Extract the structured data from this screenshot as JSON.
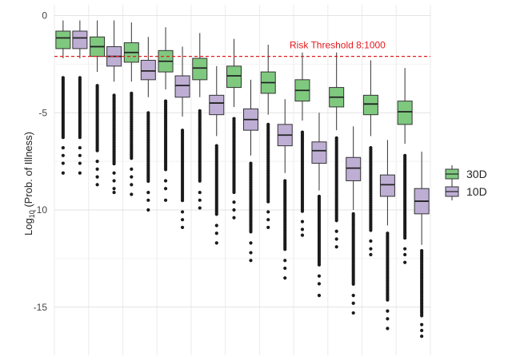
{
  "chart_data": {
    "type": "boxplot",
    "ylabel_main": "Log",
    "ylabel_sub": "10",
    "ylabel_rest": " (Prob. of Illness)",
    "yticks": [
      0,
      -5,
      -10,
      -15
    ],
    "ylim": [
      -16.9,
      0.2
    ],
    "threshold": {
      "value": -2.1,
      "label": "Risk Threshold 8:1000",
      "color": "#e41a1c"
    },
    "legend": {
      "position": "right"
    },
    "series": [
      {
        "name": "30D",
        "color": "#7fc97f"
      },
      {
        "name": "10D",
        "color": "#beaed4"
      }
    ],
    "groups": [
      {
        "boxes": [
          {
            "series": 0,
            "whisker_low": -2.2,
            "q1": -1.7,
            "median": -1.15,
            "q3": -0.8,
            "whisker_high": -0.25,
            "out_dense_top": -3.2,
            "out_dense_bottom": -6.3,
            "out_sparse": [
              -6.8,
              -7.2,
              -7.6,
              -8.1
            ]
          },
          {
            "series": 1,
            "whisker_low": -2.2,
            "q1": -1.7,
            "median": -1.15,
            "q3": -0.8,
            "whisker_high": -0.25,
            "out_dense_top": -3.2,
            "out_dense_bottom": -6.3,
            "out_sparse": [
              -6.8,
              -7.2,
              -7.6,
              -8.1
            ]
          }
        ]
      },
      {
        "boxes": [
          {
            "series": 0,
            "whisker_low": -2.9,
            "q1": -2.1,
            "median": -1.6,
            "q3": -1.1,
            "whisker_high": -0.25,
            "out_dense_top": -3.6,
            "out_dense_bottom": -7.0,
            "out_sparse": [
              -7.5,
              -7.9,
              -8.3,
              -8.7
            ]
          },
          {
            "series": 1,
            "whisker_low": -3.4,
            "q1": -2.6,
            "median": -2.1,
            "q3": -1.6,
            "whisker_high": -0.25,
            "out_dense_top": -4.1,
            "out_dense_bottom": -7.7,
            "out_sparse": [
              -8.1,
              -8.5,
              -8.9,
              -9.1
            ]
          }
        ]
      },
      {
        "boxes": [
          {
            "series": 0,
            "whisker_low": -3.4,
            "q1": -2.4,
            "median": -1.9,
            "q3": -1.4,
            "whisker_high": -0.35,
            "out_dense_top": -4.0,
            "out_dense_bottom": -7.4,
            "out_sparse": [
              -7.9,
              -8.3,
              -8.7,
              -9.2
            ]
          },
          {
            "series": 1,
            "whisker_low": -4.2,
            "q1": -3.3,
            "median": -2.85,
            "q3": -2.3,
            "whisker_high": -1.1,
            "out_dense_top": -5.0,
            "out_dense_bottom": -8.6,
            "out_sparse": [
              -9.1,
              -9.5,
              -10.0
            ]
          }
        ]
      },
      {
        "boxes": [
          {
            "series": 0,
            "whisker_low": -3.8,
            "q1": -2.9,
            "median": -2.35,
            "q3": -1.8,
            "whisker_high": -0.6,
            "out_dense_top": -4.4,
            "out_dense_bottom": -8.0,
            "out_sparse": [
              -8.5,
              -8.9,
              -9.5
            ]
          },
          {
            "series": 1,
            "whisker_low": -5.2,
            "q1": -4.2,
            "median": -3.6,
            "q3": -3.1,
            "whisker_high": -1.6,
            "out_dense_top": -5.9,
            "out_dense_bottom": -9.6,
            "out_sparse": [
              -10.1,
              -10.5,
              -10.9
            ]
          }
        ]
      },
      {
        "boxes": [
          {
            "series": 0,
            "whisker_low": -4.2,
            "q1": -3.3,
            "median": -2.7,
            "q3": -2.2,
            "whisker_high": -0.9,
            "out_dense_top": -4.9,
            "out_dense_bottom": -8.6,
            "out_sparse": [
              -9.1,
              -9.5,
              -9.9
            ]
          },
          {
            "series": 1,
            "whisker_low": -6.2,
            "q1": -5.1,
            "median": -4.5,
            "q3": -4.1,
            "whisker_high": -2.6,
            "out_dense_top": -6.7,
            "out_dense_bottom": -10.3,
            "out_sparse": [
              -10.8,
              -11.2,
              -11.7
            ]
          }
        ]
      },
      {
        "boxes": [
          {
            "series": 0,
            "whisker_low": -4.7,
            "q1": -3.7,
            "median": -3.1,
            "q3": -2.6,
            "whisker_high": -1.2,
            "out_dense_top": -5.3,
            "out_dense_bottom": -9.1,
            "out_sparse": [
              -9.6,
              -10.0,
              -10.4
            ]
          },
          {
            "series": 1,
            "whisker_low": -7.2,
            "q1": -5.9,
            "median": -5.35,
            "q3": -4.8,
            "whisker_high": -3.3,
            "out_dense_top": -7.6,
            "out_dense_bottom": -11.2,
            "out_sparse": [
              -11.7,
              -12.2,
              -12.6
            ]
          }
        ]
      },
      {
        "boxes": [
          {
            "series": 0,
            "whisker_low": -5.1,
            "q1": -4.0,
            "median": -3.45,
            "q3": -2.9,
            "whisker_high": -1.5,
            "out_dense_top": -5.6,
            "out_dense_bottom": -9.6,
            "out_sparse": [
              -10.1,
              -10.5,
              -10.9
            ]
          },
          {
            "series": 1,
            "whisker_low": -8.1,
            "q1": -6.7,
            "median": -6.15,
            "q3": -5.6,
            "whisker_high": -4.3,
            "out_dense_top": -8.5,
            "out_dense_bottom": -12.1,
            "out_sparse": [
              -12.6,
              -13.0,
              -13.5
            ]
          }
        ]
      },
      {
        "boxes": [
          {
            "series": 0,
            "whisker_low": -5.4,
            "q1": -4.4,
            "median": -3.85,
            "q3": -3.3,
            "whisker_high": -1.9,
            "out_dense_top": -6.0,
            "out_dense_bottom": -10.1,
            "out_sparse": [
              -10.6,
              -11.0,
              -11.3
            ]
          },
          {
            "series": 1,
            "whisker_low": -9.0,
            "q1": -7.6,
            "median": -6.95,
            "q3": -6.5,
            "whisker_high": -5.0,
            "out_dense_top": -9.3,
            "out_dense_bottom": -12.9,
            "out_sparse": [
              -13.4,
              -13.8,
              -14.4
            ]
          }
        ]
      },
      {
        "boxes": [
          {
            "series": 0,
            "whisker_low": -5.9,
            "q1": -4.7,
            "median": -4.2,
            "q3": -3.7,
            "whisker_high": -1.9,
            "out_dense_top": -6.3,
            "out_dense_bottom": -10.6,
            "out_sparse": [
              -11.1,
              -11.5,
              -11.9
            ]
          },
          {
            "series": 1,
            "whisker_low": -10.0,
            "q1": -8.5,
            "median": -7.85,
            "q3": -7.3,
            "whisker_high": -5.7,
            "out_dense_top": -10.2,
            "out_dense_bottom": -13.9,
            "out_sparse": [
              -14.4,
              -14.8,
              -15.3
            ]
          }
        ]
      },
      {
        "boxes": [
          {
            "series": 0,
            "whisker_low": -6.2,
            "q1": -5.1,
            "median": -4.55,
            "q3": -4.1,
            "whisker_high": -2.3,
            "out_dense_top": -6.8,
            "out_dense_bottom": -11.1,
            "out_sparse": [
              -11.6,
              -12.0,
              -12.3
            ]
          },
          {
            "series": 1,
            "whisker_low": -10.8,
            "q1": -9.3,
            "median": -8.7,
            "q3": -8.2,
            "whisker_high": -6.4,
            "out_dense_top": -11.2,
            "out_dense_bottom": -14.7,
            "out_sparse": [
              -15.2,
              -15.6,
              -16.1
            ]
          }
        ]
      },
      {
        "boxes": [
          {
            "series": 0,
            "whisker_low": -6.6,
            "q1": -5.6,
            "median": -4.95,
            "q3": -4.4,
            "whisker_high": -2.7,
            "out_dense_top": -7.2,
            "out_dense_bottom": -11.5,
            "out_sparse": [
              -12.0,
              -12.3,
              -12.7
            ]
          },
          {
            "series": 1,
            "whisker_low": -11.8,
            "q1": -10.2,
            "median": -9.55,
            "q3": -8.9,
            "whisker_high": -7.0,
            "out_dense_top": -12.1,
            "out_dense_bottom": -15.5,
            "out_sparse": [
              -15.9,
              -16.2,
              -16.5
            ]
          }
        ]
      }
    ]
  }
}
